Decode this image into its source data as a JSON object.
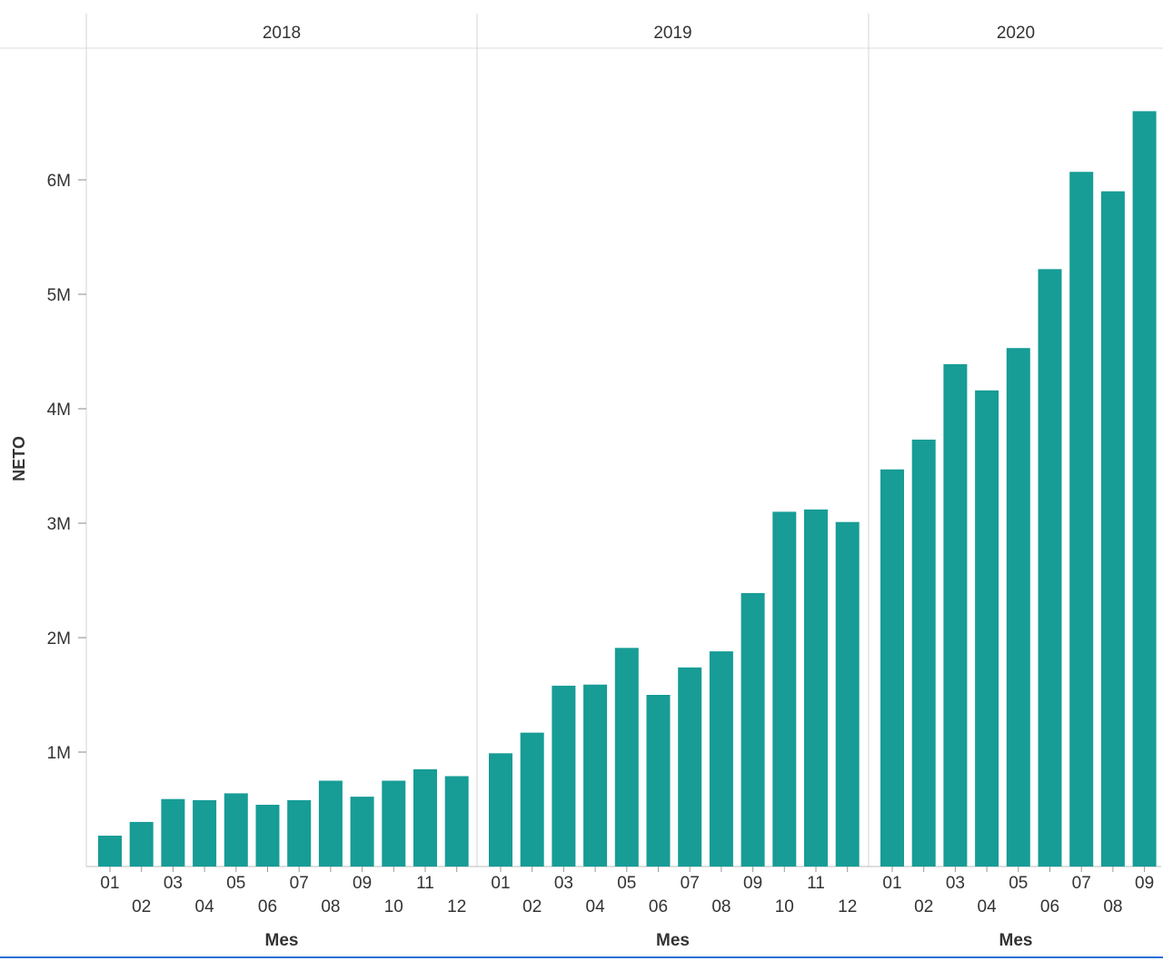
{
  "chart_data": {
    "type": "bar",
    "ylabel": "NETO",
    "xlabel": "Mes",
    "ylim": [
      0,
      7000000
    ],
    "yticks": [
      1000000,
      2000000,
      3000000,
      4000000,
      5000000,
      6000000
    ],
    "ytick_labels": [
      "1M",
      "2M",
      "3M",
      "4M",
      "5M",
      "6M"
    ],
    "grid": false,
    "bar_color": "#179c96",
    "panels": [
      {
        "year": "2018",
        "categories": [
          "01",
          "02",
          "03",
          "04",
          "05",
          "06",
          "07",
          "08",
          "09",
          "10",
          "11",
          "12"
        ],
        "values": [
          270000,
          390000,
          590000,
          580000,
          640000,
          540000,
          580000,
          750000,
          610000,
          750000,
          850000,
          790000
        ]
      },
      {
        "year": "2019",
        "categories": [
          "01",
          "02",
          "03",
          "04",
          "05",
          "06",
          "07",
          "08",
          "09",
          "10",
          "11",
          "12"
        ],
        "values": [
          990000,
          1170000,
          1580000,
          1590000,
          1910000,
          1500000,
          1740000,
          1880000,
          2390000,
          3100000,
          3120000,
          3010000
        ]
      },
      {
        "year": "2020",
        "categories": [
          "01",
          "02",
          "03",
          "04",
          "05",
          "06",
          "07",
          "08",
          "09"
        ],
        "values": [
          3470000,
          3730000,
          4390000,
          4160000,
          4530000,
          5220000,
          6070000,
          5900000,
          6600000
        ]
      }
    ]
  }
}
